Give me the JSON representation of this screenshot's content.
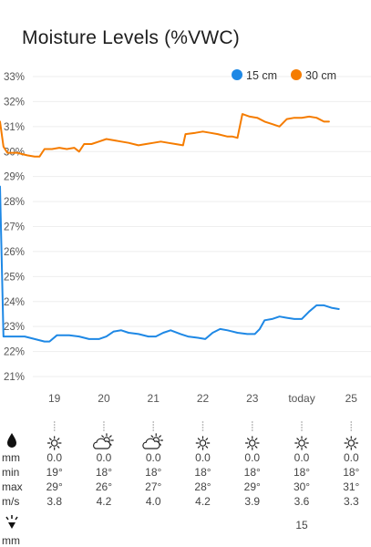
{
  "header": {
    "title": "Moisture Levels (%VWC)"
  },
  "colors": {
    "series_15": "#1E88E5",
    "series_30": "#F57C00",
    "grid": "#eeeeee",
    "dot": "#bdbdbd"
  },
  "chart_data": {
    "type": "line",
    "ylim": [
      21,
      33
    ],
    "yticks": [
      "21%",
      "22%",
      "23%",
      "24%",
      "25%",
      "26%",
      "27%",
      "28%",
      "29%",
      "30%",
      "31%",
      "32%",
      "33%"
    ],
    "xlim": [
      17.9,
      25.4
    ],
    "xticks": [
      {
        "x": 19,
        "label": "19"
      },
      {
        "x": 20,
        "label": "20"
      },
      {
        "x": 21,
        "label": "21"
      },
      {
        "x": 22,
        "label": "22"
      },
      {
        "x": 23,
        "label": "23"
      },
      {
        "x": 24,
        "label": "today"
      },
      {
        "x": 25,
        "label": "25"
      }
    ],
    "legend_position": "top-right",
    "series": [
      {
        "name": "15 cm",
        "color": "#1E88E5",
        "points": [
          [
            17.9,
            28.6
          ],
          [
            17.97,
            22.6
          ],
          [
            18.2,
            22.6
          ],
          [
            18.4,
            22.6
          ],
          [
            18.6,
            22.5
          ],
          [
            18.8,
            22.4
          ],
          [
            18.9,
            22.4
          ],
          [
            19.05,
            22.65
          ],
          [
            19.3,
            22.65
          ],
          [
            19.5,
            22.6
          ],
          [
            19.7,
            22.5
          ],
          [
            19.9,
            22.5
          ],
          [
            20.05,
            22.6
          ],
          [
            20.2,
            22.8
          ],
          [
            20.35,
            22.85
          ],
          [
            20.5,
            22.75
          ],
          [
            20.7,
            22.7
          ],
          [
            20.9,
            22.6
          ],
          [
            21.05,
            22.6
          ],
          [
            21.2,
            22.75
          ],
          [
            21.35,
            22.85
          ],
          [
            21.55,
            22.7
          ],
          [
            21.7,
            22.6
          ],
          [
            21.9,
            22.55
          ],
          [
            22.05,
            22.5
          ],
          [
            22.2,
            22.75
          ],
          [
            22.35,
            22.9
          ],
          [
            22.5,
            22.85
          ],
          [
            22.7,
            22.75
          ],
          [
            22.9,
            22.7
          ],
          [
            23.05,
            22.7
          ],
          [
            23.15,
            22.9
          ],
          [
            23.25,
            23.25
          ],
          [
            23.4,
            23.3
          ],
          [
            23.55,
            23.4
          ],
          [
            23.7,
            23.35
          ],
          [
            23.85,
            23.3
          ],
          [
            24.0,
            23.3
          ],
          [
            24.15,
            23.6
          ],
          [
            24.3,
            23.85
          ],
          [
            24.45,
            23.85
          ],
          [
            24.6,
            23.75
          ],
          [
            24.75,
            23.7
          ]
        ]
      },
      {
        "name": "30 cm",
        "color": "#F57C00",
        "points": [
          [
            17.9,
            31.2
          ],
          [
            17.97,
            30.2
          ],
          [
            18.05,
            29.95
          ],
          [
            18.25,
            29.95
          ],
          [
            18.45,
            29.85
          ],
          [
            18.6,
            29.8
          ],
          [
            18.7,
            29.8
          ],
          [
            18.8,
            30.1
          ],
          [
            18.95,
            30.1
          ],
          [
            19.1,
            30.15
          ],
          [
            19.25,
            30.1
          ],
          [
            19.4,
            30.15
          ],
          [
            19.5,
            30.0
          ],
          [
            19.6,
            30.3
          ],
          [
            19.75,
            30.3
          ],
          [
            19.9,
            30.4
          ],
          [
            20.05,
            30.5
          ],
          [
            20.2,
            30.45
          ],
          [
            20.35,
            30.4
          ],
          [
            20.5,
            30.35
          ],
          [
            20.7,
            30.25
          ],
          [
            20.85,
            30.3
          ],
          [
            21.0,
            30.35
          ],
          [
            21.15,
            30.4
          ],
          [
            21.3,
            30.35
          ],
          [
            21.45,
            30.3
          ],
          [
            21.6,
            30.25
          ],
          [
            21.65,
            30.7
          ],
          [
            21.85,
            30.75
          ],
          [
            22.0,
            30.8
          ],
          [
            22.15,
            30.75
          ],
          [
            22.3,
            30.7
          ],
          [
            22.5,
            30.6
          ],
          [
            22.6,
            30.6
          ],
          [
            22.7,
            30.55
          ],
          [
            22.8,
            31.5
          ],
          [
            22.95,
            31.4
          ],
          [
            23.1,
            31.35
          ],
          [
            23.25,
            31.2
          ],
          [
            23.4,
            31.1
          ],
          [
            23.55,
            31.0
          ],
          [
            23.7,
            31.3
          ],
          [
            23.85,
            31.35
          ],
          [
            24.0,
            31.35
          ],
          [
            24.15,
            31.4
          ],
          [
            24.3,
            31.35
          ],
          [
            24.45,
            31.2
          ],
          [
            24.55,
            31.2
          ]
        ]
      }
    ]
  },
  "weather": {
    "days": [
      {
        "x": 19,
        "icon": "sun-icon",
        "rain": "0.0",
        "min": "19°",
        "max": "29°",
        "wind": "3.8",
        "extra": ""
      },
      {
        "x": 20,
        "icon": "partly-cloudy-icon",
        "rain": "0.0",
        "min": "18°",
        "max": "26°",
        "wind": "4.2",
        "extra": ""
      },
      {
        "x": 21,
        "icon": "partly-cloudy-icon",
        "rain": "0.0",
        "min": "18°",
        "max": "27°",
        "wind": "4.0",
        "extra": ""
      },
      {
        "x": 22,
        "icon": "sun-icon",
        "rain": "0.0",
        "min": "18°",
        "max": "28°",
        "wind": "4.2",
        "extra": ""
      },
      {
        "x": 23,
        "icon": "sun-icon",
        "rain": "0.0",
        "min": "18°",
        "max": "29°",
        "wind": "3.9",
        "extra": ""
      },
      {
        "x": 24,
        "icon": "sun-icon",
        "rain": "0.0",
        "min": "18°",
        "max": "30°",
        "wind": "3.6",
        "extra": "15"
      },
      {
        "x": 25,
        "icon": "sun-icon",
        "rain": "0.0",
        "min": "18°",
        "max": "31°",
        "wind": "3.3",
        "extra": ""
      }
    ],
    "row_labels": {
      "rain": "mm",
      "min": "min",
      "max": "max",
      "wind": "m/s",
      "extra": "mm"
    }
  }
}
